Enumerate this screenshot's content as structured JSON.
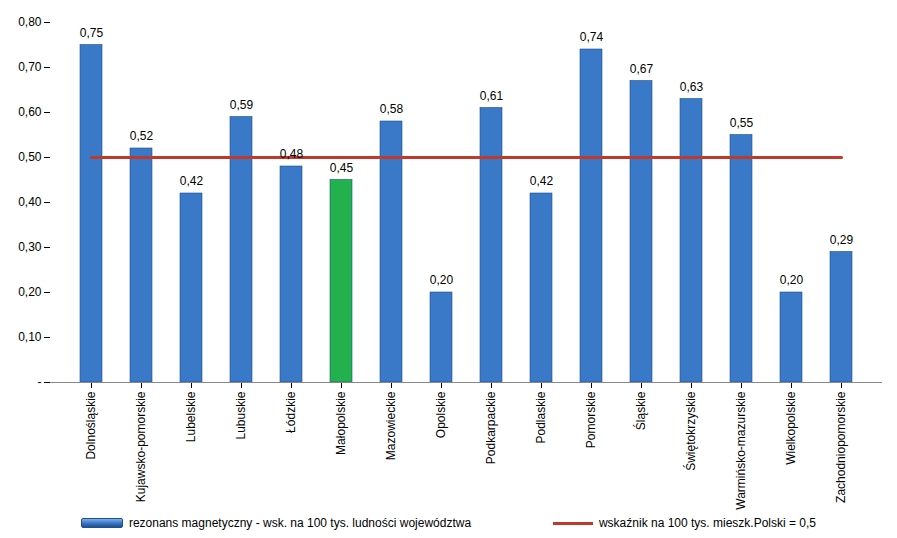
{
  "chart_data": {
    "type": "bar",
    "categories": [
      "Dolnośląskie",
      "Kujawsko-pomorskie",
      "Lubelskie",
      "Lubuskie",
      "Łódzkie",
      "Małopolskie",
      "Mazowieckie",
      "Opolskie",
      "Podkarpackie",
      "Podlaskie",
      "Pomorskie",
      "Śląskie",
      "Świętokrzyskie",
      "Warmińsko-mazurskie",
      "Wielkopolskie",
      "Zachodniopomorskie"
    ],
    "series": [
      {
        "name": "rezonans magnetyczny - wsk. na 100 tys. ludności województwa",
        "type": "bar",
        "color": "#3a78c8",
        "colors": [
          "#3a78c8",
          "#3a78c8",
          "#3a78c8",
          "#3a78c8",
          "#3a78c8",
          "#22b14c",
          "#3a78c8",
          "#3a78c8",
          "#3a78c8",
          "#3a78c8",
          "#3a78c8",
          "#3a78c8",
          "#3a78c8",
          "#3a78c8",
          "#3a78c8",
          "#3a78c8"
        ],
        "values": [
          0.75,
          0.52,
          0.42,
          0.59,
          0.48,
          0.45,
          0.58,
          0.2,
          0.61,
          0.42,
          0.74,
          0.67,
          0.63,
          0.55,
          0.2,
          0.29
        ],
        "value_labels": [
          "0,75",
          "0,52",
          "0,42",
          "0,59",
          "0,48",
          "0,45",
          "0,58",
          "0,20",
          "0,61",
          "0,42",
          "0,74",
          "0,67",
          "0,63",
          "0,55",
          "0,20",
          "0,29"
        ]
      },
      {
        "name": "wskaźnik na 100 tys. mieszk.Polski = 0,5",
        "type": "line",
        "color": "#c0392b",
        "values": [
          0.5,
          0.5,
          0.5,
          0.5,
          0.5,
          0.5,
          0.5,
          0.5,
          0.5,
          0.5,
          0.5,
          0.5,
          0.5,
          0.5,
          0.5,
          0.5
        ]
      }
    ],
    "ylim": [
      0,
      0.8
    ],
    "yticks": [
      {
        "value": 0,
        "label": "-"
      },
      {
        "value": 0.1,
        "label": "0,10"
      },
      {
        "value": 0.2,
        "label": "0,20"
      },
      {
        "value": 0.3,
        "label": "0,30"
      },
      {
        "value": 0.4,
        "label": "0,40"
      },
      {
        "value": 0.5,
        "label": "0,50"
      },
      {
        "value": 0.6,
        "label": "0,60"
      },
      {
        "value": 0.7,
        "label": "0,70"
      },
      {
        "value": 0.8,
        "label": "0,80"
      }
    ],
    "grid": false,
    "data_labels": true,
    "legend": "bottom"
  }
}
